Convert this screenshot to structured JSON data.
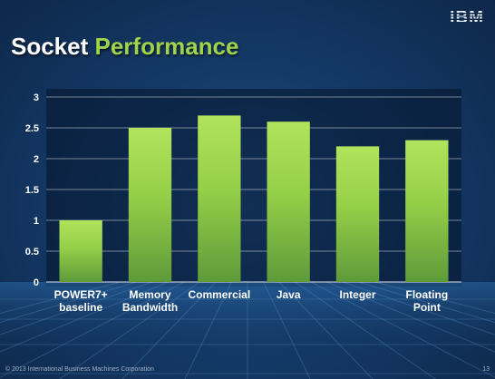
{
  "header": {
    "logo_text": "IBM",
    "title_part1": "Socket",
    "title_part2": "Performance"
  },
  "footer": {
    "copyright": "© 2013 International Business Machines Corporation",
    "page_number": "13"
  },
  "colors": {
    "title_accent": "#9ed34a",
    "bar_fill": "#9ad44e",
    "gridline": "#ffffff"
  },
  "chart_data": {
    "type": "bar",
    "title": "",
    "xlabel": "",
    "ylabel": "",
    "categories": [
      [
        "POWER7+",
        "baseline"
      ],
      [
        "Memory",
        "Bandwidth"
      ],
      [
        "Commercial"
      ],
      [
        "Java"
      ],
      [
        "Integer"
      ],
      [
        "Floating",
        "Point"
      ]
    ],
    "values": [
      1.0,
      2.5,
      2.7,
      2.6,
      2.2,
      2.3
    ],
    "ylim": [
      0,
      3
    ],
    "yticks": [
      "0",
      "0.5",
      "1",
      "1.5",
      "2",
      "2.5",
      "3"
    ],
    "grid": true,
    "legend": "none"
  }
}
